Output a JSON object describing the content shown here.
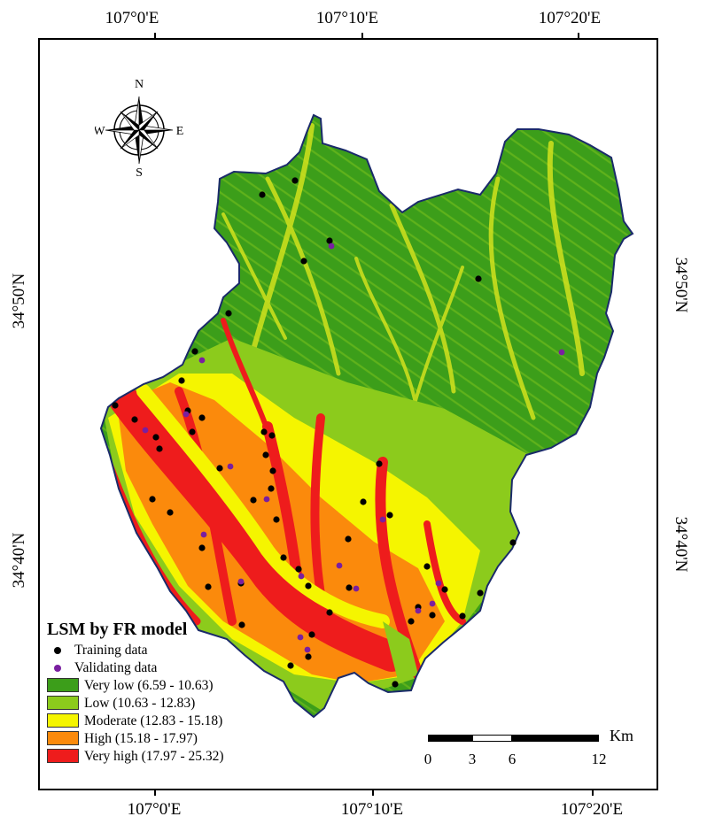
{
  "graticule": {
    "longitudes": [
      "107°0'E",
      "107°10'E",
      "107°20'E"
    ],
    "latitudes": [
      "34°50'N",
      "34°40'N"
    ]
  },
  "compass": {
    "n": "N",
    "s": "S",
    "e": "E",
    "w": "W"
  },
  "legend": {
    "title": "LSM by FR model",
    "points": [
      {
        "label": "Training data",
        "color": "#000000"
      },
      {
        "label": "Validating data",
        "color": "#7a1fa0"
      }
    ],
    "classes": [
      {
        "label": "Very low (6.59 - 10.63)",
        "color": "#3c9e1a"
      },
      {
        "label": "Low (10.63 - 12.83)",
        "color": "#8ccb1c"
      },
      {
        "label": "Moderate (12.83 - 15.18)",
        "color": "#f5f500"
      },
      {
        "label": "High (15.18 - 17.97)",
        "color": "#fb8a0c"
      },
      {
        "label": "Very high (17.97 - 25.32)",
        "color": "#ee1c1c"
      }
    ]
  },
  "scalebar": {
    "labels": [
      "0",
      "3",
      "6",
      "12"
    ],
    "unit": "Km"
  }
}
